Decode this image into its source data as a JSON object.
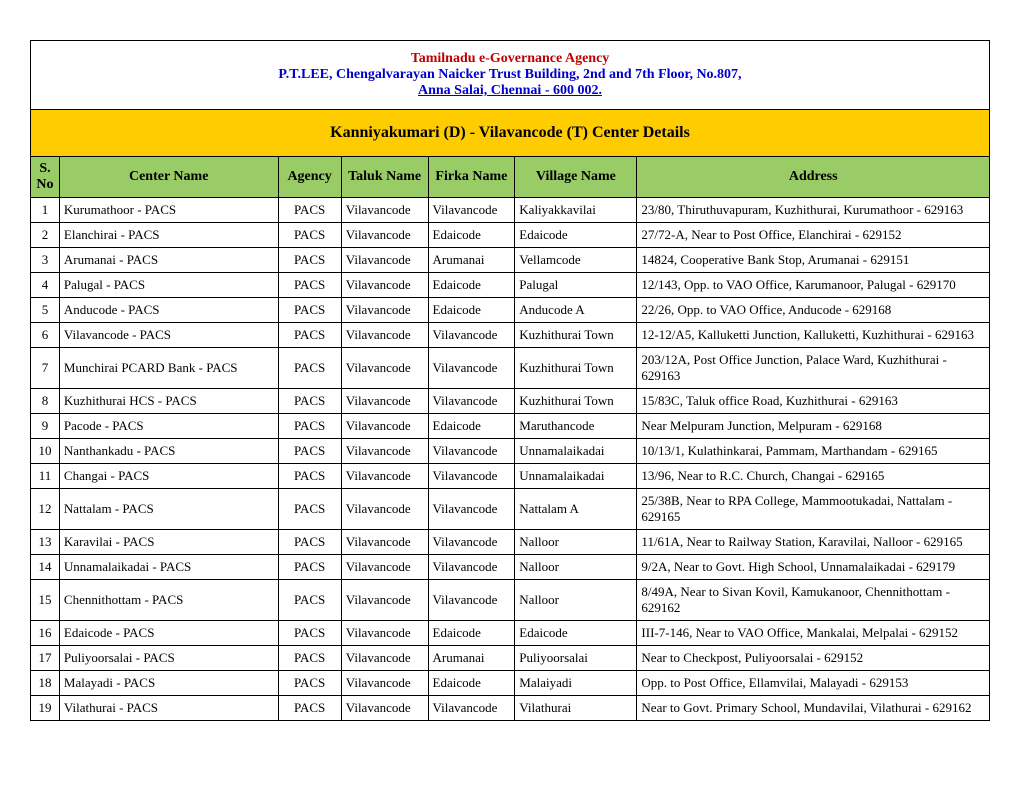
{
  "header": {
    "line1": "Tamilnadu e-Governance Agency",
    "line2": "P.T.LEE, Chengalvarayan Naicker Trust Building, 2nd and 7th Floor, No.807,",
    "line3": "Anna Salai, Chennai - 600 002."
  },
  "title": "Kanniyakumari (D) - Vilavancode (T) Center Details",
  "columns": {
    "sno": "S. No",
    "center": "Center Name",
    "agency": "Agency",
    "taluk": "Taluk Name",
    "firka": "Firka Name",
    "village": "Village Name",
    "address": "Address"
  },
  "rows": [
    {
      "sno": "1",
      "center": "Kurumathoor - PACS",
      "agency": "PACS",
      "taluk": "Vilavancode",
      "firka": "Vilavancode",
      "village": "Kaliyakkavilai",
      "address": "23/80, Thiruthuvapuram, Kuzhithurai, Kurumathoor - 629163"
    },
    {
      "sno": "2",
      "center": "Elanchirai - PACS",
      "agency": "PACS",
      "taluk": "Vilavancode",
      "firka": "Edaicode",
      "village": "Edaicode",
      "address": "27/72-A, Near to Post Office, Elanchirai - 629152"
    },
    {
      "sno": "3",
      "center": "Arumanai - PACS",
      "agency": "PACS",
      "taluk": "Vilavancode",
      "firka": "Arumanai",
      "village": "Vellamcode",
      "address": "14824, Cooperative Bank Stop, Arumanai - 629151"
    },
    {
      "sno": "4",
      "center": "Palugal - PACS",
      "agency": "PACS",
      "taluk": "Vilavancode",
      "firka": "Edaicode",
      "village": "Palugal",
      "address": "12/143, Opp. to VAO Office, Karumanoor, Palugal - 629170"
    },
    {
      "sno": "5",
      "center": "Anducode - PACS",
      "agency": "PACS",
      "taluk": "Vilavancode",
      "firka": "Edaicode",
      "village": "Anducode A",
      "address": "22/26, Opp. to VAO Office, Anducode - 629168"
    },
    {
      "sno": "6",
      "center": "Vilavancode - PACS",
      "agency": "PACS",
      "taluk": "Vilavancode",
      "firka": "Vilavancode",
      "village": "Kuzhithurai Town",
      "address": "12-12/A5, Kalluketti Junction, Kalluketti, Kuzhithurai - 629163"
    },
    {
      "sno": "7",
      "center": "Munchirai PCARD Bank - PACS",
      "agency": "PACS",
      "taluk": "Vilavancode",
      "firka": "Vilavancode",
      "village": "Kuzhithurai Town",
      "address": "203/12A, Post Office Junction, Palace Ward, Kuzhithurai - 629163"
    },
    {
      "sno": "8",
      "center": "Kuzhithurai HCS - PACS",
      "agency": "PACS",
      "taluk": "Vilavancode",
      "firka": "Vilavancode",
      "village": "Kuzhithurai Town",
      "address": "15/83C, Taluk office Road, Kuzhithurai - 629163"
    },
    {
      "sno": "9",
      "center": "Pacode - PACS",
      "agency": "PACS",
      "taluk": "Vilavancode",
      "firka": "Edaicode",
      "village": "Maruthancode",
      "address": "Near Melpuram Junction, Melpuram - 629168"
    },
    {
      "sno": "10",
      "center": "Nanthankadu - PACS",
      "agency": "PACS",
      "taluk": "Vilavancode",
      "firka": "Vilavancode",
      "village": "Unnamalaikadai",
      "address": "10/13/1, Kulathinkarai, Pammam, Marthandam - 629165"
    },
    {
      "sno": "11",
      "center": "Changai - PACS",
      "agency": "PACS",
      "taluk": "Vilavancode",
      "firka": "Vilavancode",
      "village": "Unnamalaikadai",
      "address": "13/96, Near to R.C. Church, Changai - 629165"
    },
    {
      "sno": "12",
      "center": "Nattalam - PACS",
      "agency": "PACS",
      "taluk": "Vilavancode",
      "firka": "Vilavancode",
      "village": "Nattalam A",
      "address": "25/38B, Near to RPA College, Mammootukadai, Nattalam - 629165"
    },
    {
      "sno": "13",
      "center": "Karavilai - PACS",
      "agency": "PACS",
      "taluk": "Vilavancode",
      "firka": "Vilavancode",
      "village": "Nalloor",
      "address": "11/61A, Near to Railway Station, Karavilai, Nalloor - 629165"
    },
    {
      "sno": "14",
      "center": "Unnamalaikadai - PACS",
      "agency": "PACS",
      "taluk": "Vilavancode",
      "firka": "Vilavancode",
      "village": "Nalloor",
      "address": "9/2A, Near to Govt. High School, Unnamalaikadai - 629179"
    },
    {
      "sno": "15",
      "center": "Chennithottam - PACS",
      "agency": "PACS",
      "taluk": "Vilavancode",
      "firka": "Vilavancode",
      "village": "Nalloor",
      "address": "8/49A, Near to Sivan Kovil, Kamukanoor, Chennithottam - 629162"
    },
    {
      "sno": "16",
      "center": "Edaicode - PACS",
      "agency": "PACS",
      "taluk": "Vilavancode",
      "firka": "Edaicode",
      "village": "Edaicode",
      "address": "III-7-146, Near to VAO Office, Mankalai, Melpalai - 629152"
    },
    {
      "sno": "17",
      "center": "Puliyoorsalai - PACS",
      "agency": "PACS",
      "taluk": "Vilavancode",
      "firka": "Arumanai",
      "village": "Puliyoorsalai",
      "address": "Near to Checkpost, Puliyoorsalai - 629152"
    },
    {
      "sno": "18",
      "center": "Malayadi - PACS",
      "agency": "PACS",
      "taluk": "Vilavancode",
      "firka": "Edaicode",
      "village": "Malaiyadi",
      "address": "Opp. to Post Office, Ellamvilai, Malayadi - 629153"
    },
    {
      "sno": "19",
      "center": "Vilathurai - PACS",
      "agency": "PACS",
      "taluk": "Vilavancode",
      "firka": "Vilavancode",
      "village": "Vilathurai",
      "address": "Near to Govt. Primary School, Mundavilai, Vilathurai - 629162"
    }
  ],
  "colors": {
    "title_bg": "#ffcc00",
    "header_bg": "#99cc66",
    "header_line1": "#c00000",
    "header_line23": "#0000cc",
    "border": "#000000"
  }
}
